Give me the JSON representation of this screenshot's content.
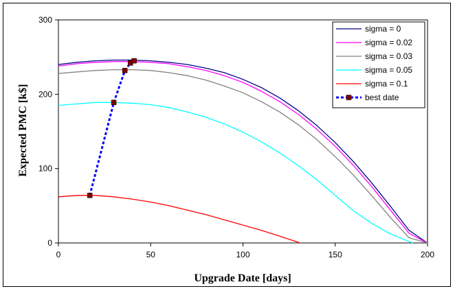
{
  "chart_data": {
    "type": "line",
    "xlabel": "Upgrade Date [days]",
    "ylabel": "Expected PMC [k$]",
    "xlim": [
      0,
      200
    ],
    "ylim": [
      0,
      300
    ],
    "x_ticks": [
      0,
      50,
      100,
      150,
      200
    ],
    "y_ticks": [
      0,
      100,
      200,
      300
    ],
    "x_tick_labels": [
      "0",
      "50",
      "100",
      "150",
      "200"
    ],
    "y_tick_labels": [
      "0",
      "100",
      "200",
      "300"
    ],
    "grid": false,
    "legend_position": "top-right",
    "series": [
      {
        "name": "sigma = 0",
        "color": "#000080",
        "x": [
          0,
          10,
          20,
          30,
          40,
          50,
          60,
          70,
          80,
          90,
          100,
          110,
          120,
          130,
          140,
          150,
          160,
          170,
          180,
          190,
          200
        ],
        "values": [
          240,
          243,
          245,
          246,
          246,
          245,
          243,
          240,
          235,
          229,
          220,
          209,
          195,
          178,
          158,
          135,
          109,
          80,
          49,
          17,
          0
        ]
      },
      {
        "name": "sigma = 0.02",
        "color": "#ff00ff",
        "x": [
          0,
          10,
          20,
          30,
          40,
          50,
          60,
          70,
          80,
          90,
          100,
          110,
          120,
          130,
          140,
          150,
          160,
          170,
          180,
          190,
          200
        ],
        "values": [
          238,
          241,
          243,
          244,
          244,
          243,
          241,
          237,
          232,
          225,
          216,
          204,
          190,
          173,
          153,
          130,
          104,
          75,
          44,
          13,
          0
        ]
      },
      {
        "name": "sigma = 0.03",
        "color": "#808080",
        "x": [
          0,
          10,
          20,
          30,
          40,
          50,
          60,
          70,
          80,
          90,
          100,
          110,
          120,
          130,
          140,
          150,
          160,
          170,
          180,
          190,
          200
        ],
        "values": [
          228,
          230,
          232,
          233,
          233,
          232,
          229,
          225,
          219,
          211,
          202,
          190,
          176,
          159,
          139,
          116,
          91,
          63,
          34,
          7,
          0
        ]
      },
      {
        "name": "sigma = 0.05",
        "color": "#00ffff",
        "x": [
          0,
          10,
          20,
          30,
          40,
          50,
          60,
          70,
          80,
          90,
          100,
          110,
          120,
          130,
          140,
          150,
          160,
          170,
          180,
          190,
          192
        ],
        "values": [
          185,
          187,
          189,
          189,
          188,
          186,
          182,
          176,
          169,
          160,
          149,
          136,
          121,
          104,
          85,
          64,
          43,
          26,
          12,
          2,
          0
        ]
      },
      {
        "name": "sigma = 0.1",
        "color": "#ff0000",
        "x": [
          0,
          10,
          17,
          20,
          30,
          40,
          50,
          60,
          70,
          80,
          90,
          100,
          110,
          120,
          125,
          131
        ],
        "values": [
          62,
          64,
          64,
          64,
          62,
          59,
          55,
          50,
          44,
          38,
          31,
          24,
          17,
          9,
          5,
          0
        ]
      },
      {
        "name": "best date",
        "color": "#0000ff",
        "marker_color": "#800000",
        "dashed": true,
        "x": [
          17,
          30,
          36,
          39,
          41
        ],
        "values": [
          64,
          189,
          232,
          242,
          245
        ]
      }
    ]
  }
}
